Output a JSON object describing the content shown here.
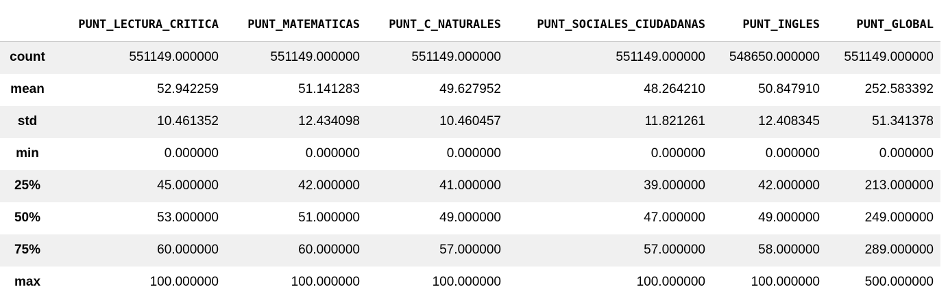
{
  "table": {
    "columns": [
      "PUNT_LECTURA_CRITICA",
      "PUNT_MATEMATICAS",
      "PUNT_C_NATURALES",
      "PUNT_SOCIALES_CIUDADANAS",
      "PUNT_INGLES",
      "PUNT_GLOBAL"
    ],
    "rows": [
      {
        "label": "count",
        "values": [
          "551149.000000",
          "551149.000000",
          "551149.000000",
          "551149.000000",
          "548650.000000",
          "551149.000000"
        ]
      },
      {
        "label": "mean",
        "values": [
          "52.942259",
          "51.141283",
          "49.627952",
          "48.264210",
          "50.847910",
          "252.583392"
        ]
      },
      {
        "label": "std",
        "values": [
          "10.461352",
          "12.434098",
          "10.460457",
          "11.821261",
          "12.408345",
          "51.341378"
        ]
      },
      {
        "label": "min",
        "values": [
          "0.000000",
          "0.000000",
          "0.000000",
          "0.000000",
          "0.000000",
          "0.000000"
        ]
      },
      {
        "label": "25%",
        "values": [
          "45.000000",
          "42.000000",
          "41.000000",
          "39.000000",
          "42.000000",
          "213.000000"
        ]
      },
      {
        "label": "50%",
        "values": [
          "53.000000",
          "51.000000",
          "49.000000",
          "47.000000",
          "49.000000",
          "249.000000"
        ]
      },
      {
        "label": "75%",
        "values": [
          "60.000000",
          "60.000000",
          "57.000000",
          "57.000000",
          "58.000000",
          "289.000000"
        ]
      },
      {
        "label": "max",
        "values": [
          "100.000000",
          "100.000000",
          "100.000000",
          "100.000000",
          "100.000000",
          "500.000000"
        ]
      }
    ]
  }
}
